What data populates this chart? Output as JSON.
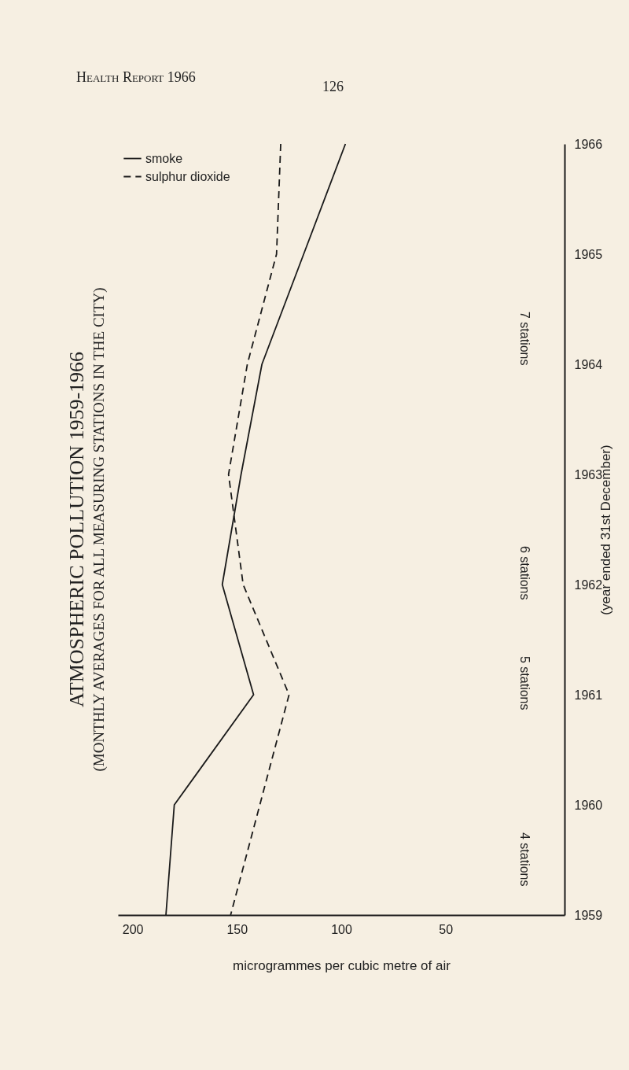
{
  "chart_data": {
    "type": "line",
    "orientation": "horizontal",
    "title": "ATMOSPHERIC POLLUTION 1959-1966",
    "subtitle": "(MONTHLY AVERAGES FOR ALL MEASURING STATIONS IN THE CITY)",
    "xlabel": "microgrammes per cubic metre of air",
    "ylabel": "(year ended 31st December)",
    "categories": [
      "1966",
      "1965",
      "1964",
      "1963",
      "1962",
      "1961",
      "1960",
      "1959"
    ],
    "xlim": [
      207,
      -7
    ],
    "xticks": [
      200,
      150,
      100,
      50
    ],
    "series": [
      {
        "name": "smoke",
        "color": "#1a1a1a",
        "line_style": "solid",
        "values": [
          98,
          118,
          138,
          148,
          157,
          142,
          180,
          184
        ]
      },
      {
        "name": "sulphur dioxide",
        "color": "#1a1a1a",
        "line_style": "dashed",
        "values": [
          129,
          131,
          145,
          154,
          147,
          125,
          139,
          153
        ]
      }
    ],
    "legend": "top left",
    "grid": false,
    "annotations": [
      "Health Report 1966",
      "126",
      "4 stations",
      "5 stations",
      "6 stations",
      "7 stations"
    ]
  }
}
